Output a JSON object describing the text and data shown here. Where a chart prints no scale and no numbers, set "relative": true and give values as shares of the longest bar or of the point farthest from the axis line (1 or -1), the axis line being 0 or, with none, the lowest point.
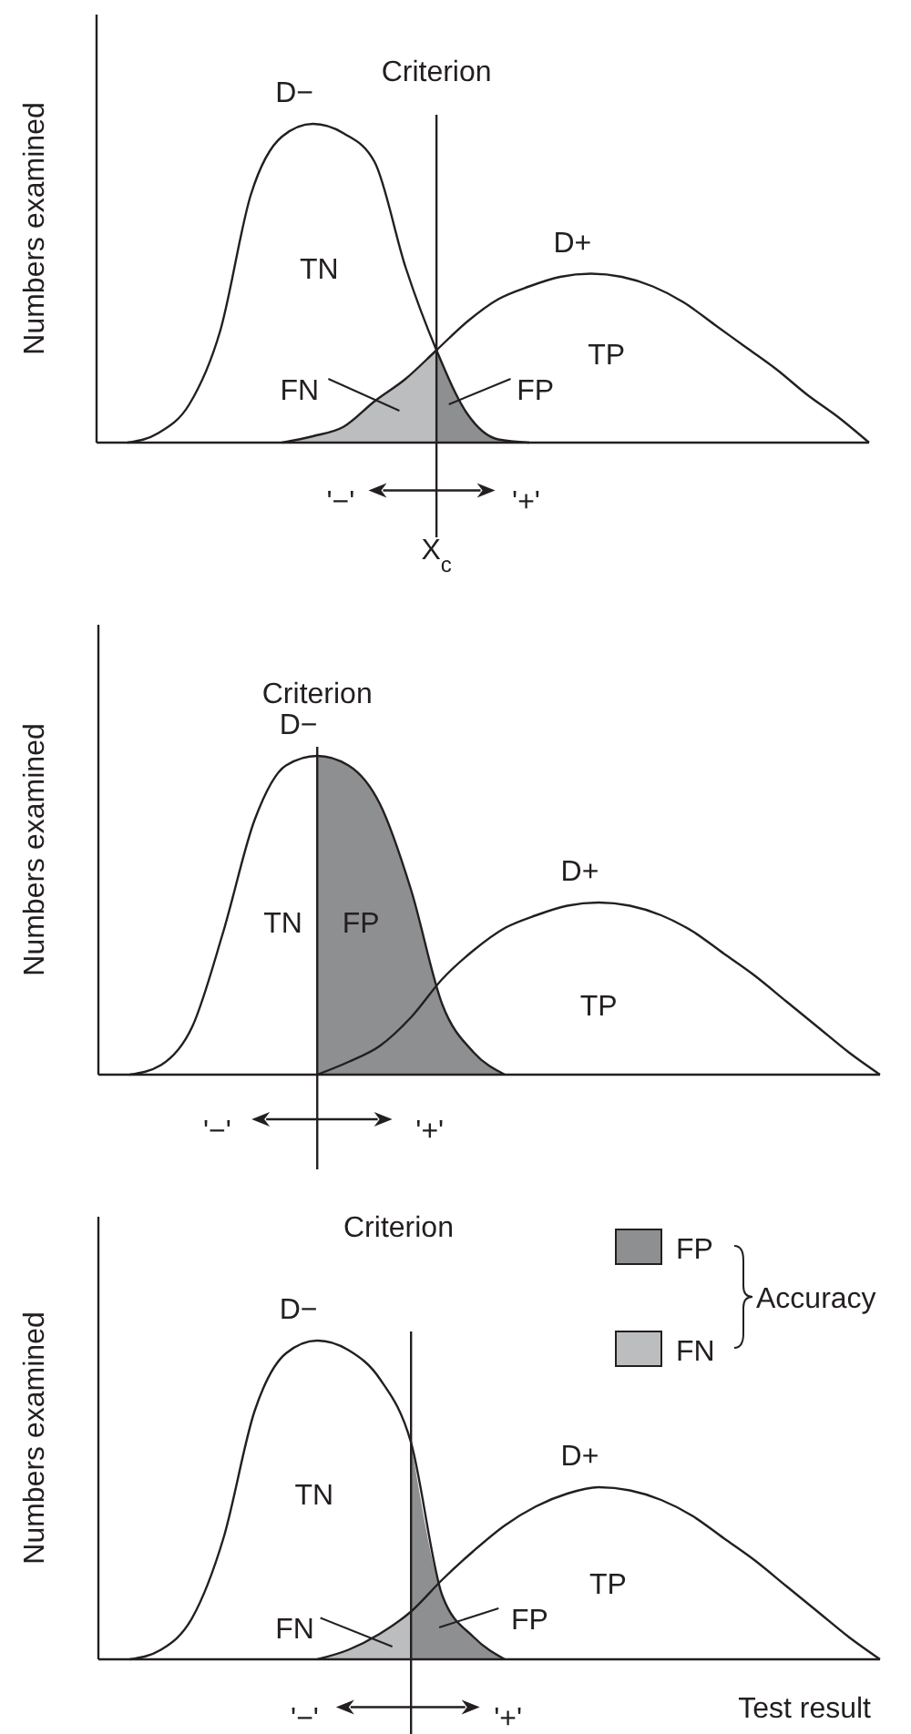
{
  "chart_data": [
    {
      "type": "line",
      "ylabel": "Numbers examined",
      "relative": true,
      "categories": [
        null,
        null,
        null,
        null,
        null,
        null,
        null,
        null,
        null,
        null,
        null,
        null,
        null,
        null,
        null,
        null,
        null,
        null,
        null,
        null,
        null,
        null,
        null,
        null,
        null,
        null
      ],
      "series": [
        {
          "type": "area",
          "color": "#bcbdbf",
          "values": [
            null,
            null,
            null,
            null,
            null,
            null,
            0,
            0.02,
            0.05,
            0.13,
            0.2,
            0.29,
            null,
            null,
            null,
            null,
            null,
            null,
            null,
            null,
            null,
            null,
            null,
            null,
            null,
            null
          ]
        },
        {
          "type": "area",
          "color": "#8e8f91",
          "values": [
            null,
            null,
            null,
            null,
            null,
            null,
            null,
            null,
            null,
            null,
            null,
            0.29,
            0.09,
            0.01,
            0,
            null,
            null,
            null,
            null,
            null,
            null,
            null,
            null,
            null,
            null,
            null
          ]
        },
        {
          "type": "line",
          "name": "D−",
          "color": "#231f20",
          "values": [
            null,
            0,
            0.03,
            0.12,
            0.35,
            0.78,
            0.96,
            1,
            0.97,
            0.88,
            0.55,
            0.29,
            0.09,
            0.01,
            0,
            null,
            null,
            null,
            null,
            null,
            null,
            null,
            null,
            null,
            null,
            null
          ]
        },
        {
          "type": "line",
          "name": "D+",
          "color": "#231f20",
          "values": [
            null,
            null,
            null,
            null,
            null,
            null,
            0,
            0.02,
            0.05,
            0.13,
            0.2,
            0.29,
            0.38,
            0.45,
            0.49,
            0.52,
            0.53,
            0.52,
            0.49,
            0.44,
            0.37,
            0.3,
            0.23,
            0.15,
            0.08,
            0
          ]
        }
      ],
      "annotations": [
        "TN",
        "TP",
        "FN",
        "FP",
        "'−'",
        "'+'",
        "X$_{c}$",
        "Criterion"
      ]
    },
    {
      "type": "line",
      "ylabel": "Numbers examined",
      "relative": true,
      "categories": [
        null,
        null,
        null,
        null,
        null,
        null,
        null,
        null,
        null,
        null,
        null,
        null,
        null,
        null,
        null,
        null,
        null,
        null,
        null,
        null,
        null,
        null,
        null,
        null,
        null,
        null
      ],
      "series": [
        {
          "type": "area",
          "color": "#8e8f91",
          "values": [
            null,
            null,
            null,
            null,
            null,
            null,
            null,
            1,
            0.97,
            0.85,
            0.58,
            0.22,
            0.07,
            0,
            null,
            null,
            null,
            null,
            null,
            null,
            null,
            null,
            null,
            null,
            null,
            null
          ]
        },
        {
          "type": "line",
          "name": "D−",
          "color": "#231f20",
          "values": [
            null,
            0,
            0.03,
            0.15,
            0.45,
            0.8,
            0.97,
            1,
            0.97,
            0.85,
            0.58,
            0.22,
            0.07,
            0,
            null,
            null,
            null,
            null,
            null,
            null,
            null,
            null,
            null,
            null,
            null,
            null
          ]
        },
        {
          "type": "line",
          "name": "D+",
          "color": "#231f20",
          "values": [
            null,
            null,
            null,
            null,
            null,
            null,
            null,
            0,
            0.04,
            0.09,
            0.18,
            0.3,
            0.39,
            0.46,
            0.5,
            0.53,
            0.54,
            0.53,
            0.5,
            0.45,
            0.38,
            0.31,
            0.23,
            0.15,
            0.07,
            0
          ]
        }
      ],
      "annotations": [
        "TN",
        "FP",
        "TP",
        "'−'",
        "'+'",
        "Criterion"
      ]
    },
    {
      "type": "line",
      "ylabel": "Numbers examined",
      "xlabel": "Test result",
      "relative": true,
      "legend": "top right",
      "categories": [
        null,
        null,
        null,
        null,
        null,
        null,
        null,
        null,
        null,
        null,
        null,
        null,
        null,
        null,
        null,
        null,
        null,
        null,
        null,
        null,
        null,
        null,
        null,
        null,
        null,
        null
      ],
      "series": [
        {
          "type": "area",
          "name": "FN",
          "color": "#bcbdbf",
          "values": [
            null,
            null,
            null,
            null,
            null,
            null,
            null,
            0,
            0.03,
            0.08,
            0.15,
            null,
            null,
            null,
            null,
            null,
            null,
            null,
            null,
            null,
            null,
            null,
            null,
            null,
            null,
            null
          ]
        },
        {
          "type": "area",
          "name": "FP",
          "color": "#8e8f91",
          "values": [
            null,
            null,
            null,
            null,
            null,
            null,
            null,
            null,
            null,
            null,
            0.68,
            0.2,
            0.07,
            0,
            null,
            null,
            null,
            null,
            null,
            null,
            null,
            null,
            null,
            null,
            null,
            null
          ]
        },
        {
          "type": "line",
          "name": "D−",
          "color": "#231f20",
          "values": [
            null,
            0,
            0.03,
            0.13,
            0.38,
            0.78,
            0.96,
            1,
            0.97,
            0.88,
            0.68,
            0.2,
            0.07,
            0,
            null,
            null,
            null,
            null,
            null,
            null,
            null,
            null,
            null,
            null,
            null,
            null
          ]
        },
        {
          "type": "line",
          "name": "D+",
          "color": "#231f20",
          "values": [
            null,
            null,
            null,
            null,
            null,
            null,
            null,
            0,
            0.03,
            0.08,
            0.15,
            0.25,
            0.34,
            0.42,
            0.48,
            0.52,
            0.54,
            0.53,
            0.5,
            0.45,
            0.38,
            0.31,
            0.23,
            0.15,
            0.07,
            0
          ]
        }
      ],
      "annotations": [
        "TN",
        "TP",
        "FN",
        "FP",
        "'−'",
        "'+'",
        "Accuracy",
        "Criterion"
      ]
    }
  ]
}
